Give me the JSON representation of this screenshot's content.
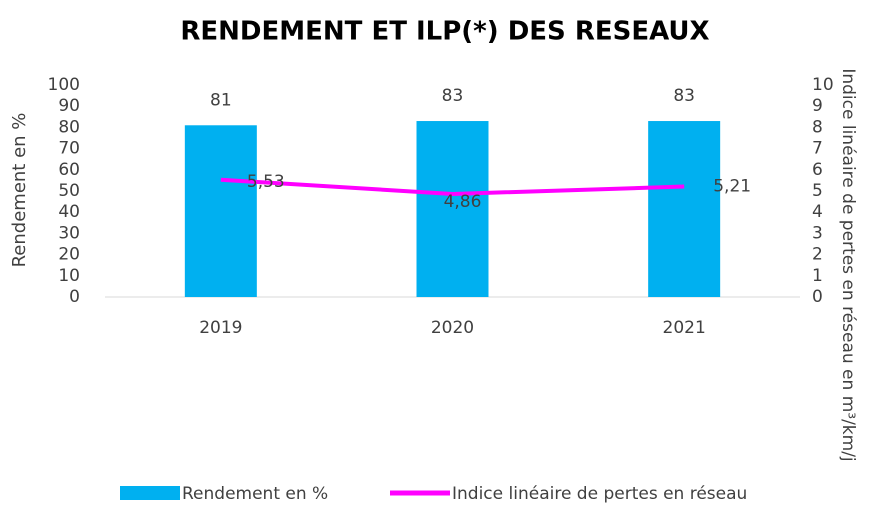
{
  "chart_data": {
    "type": "bar",
    "title": "RENDEMENT ET ILP(*) DES RESEAUX",
    "ylabel": "Rendement en %",
    "y2label": "Indice linéaire de pertes en réseau en m³/km/j",
    "categories": [
      "2019",
      "2020",
      "2021"
    ],
    "series": [
      {
        "name": "Rendement en %",
        "type": "bar",
        "color": "#00b0f0",
        "values": [
          81,
          83,
          83
        ]
      },
      {
        "name": "Indice linéaire de pertes en réseau",
        "type": "line",
        "axis": "y2",
        "color": "#ff00ff",
        "values": [
          5.53,
          4.86,
          5.21
        ],
        "value_labels": [
          "5,53",
          "4,86",
          "5,21"
        ]
      }
    ],
    "ylim": [
      0,
      100
    ],
    "yticks": [
      0,
      10,
      20,
      30,
      40,
      50,
      60,
      70,
      80,
      90,
      100
    ],
    "y2lim": [
      0,
      10
    ],
    "y2ticks": [
      0,
      1,
      2,
      3,
      4,
      5,
      6,
      7,
      8,
      9,
      10
    ],
    "grid": false,
    "legend": "bottom"
  }
}
